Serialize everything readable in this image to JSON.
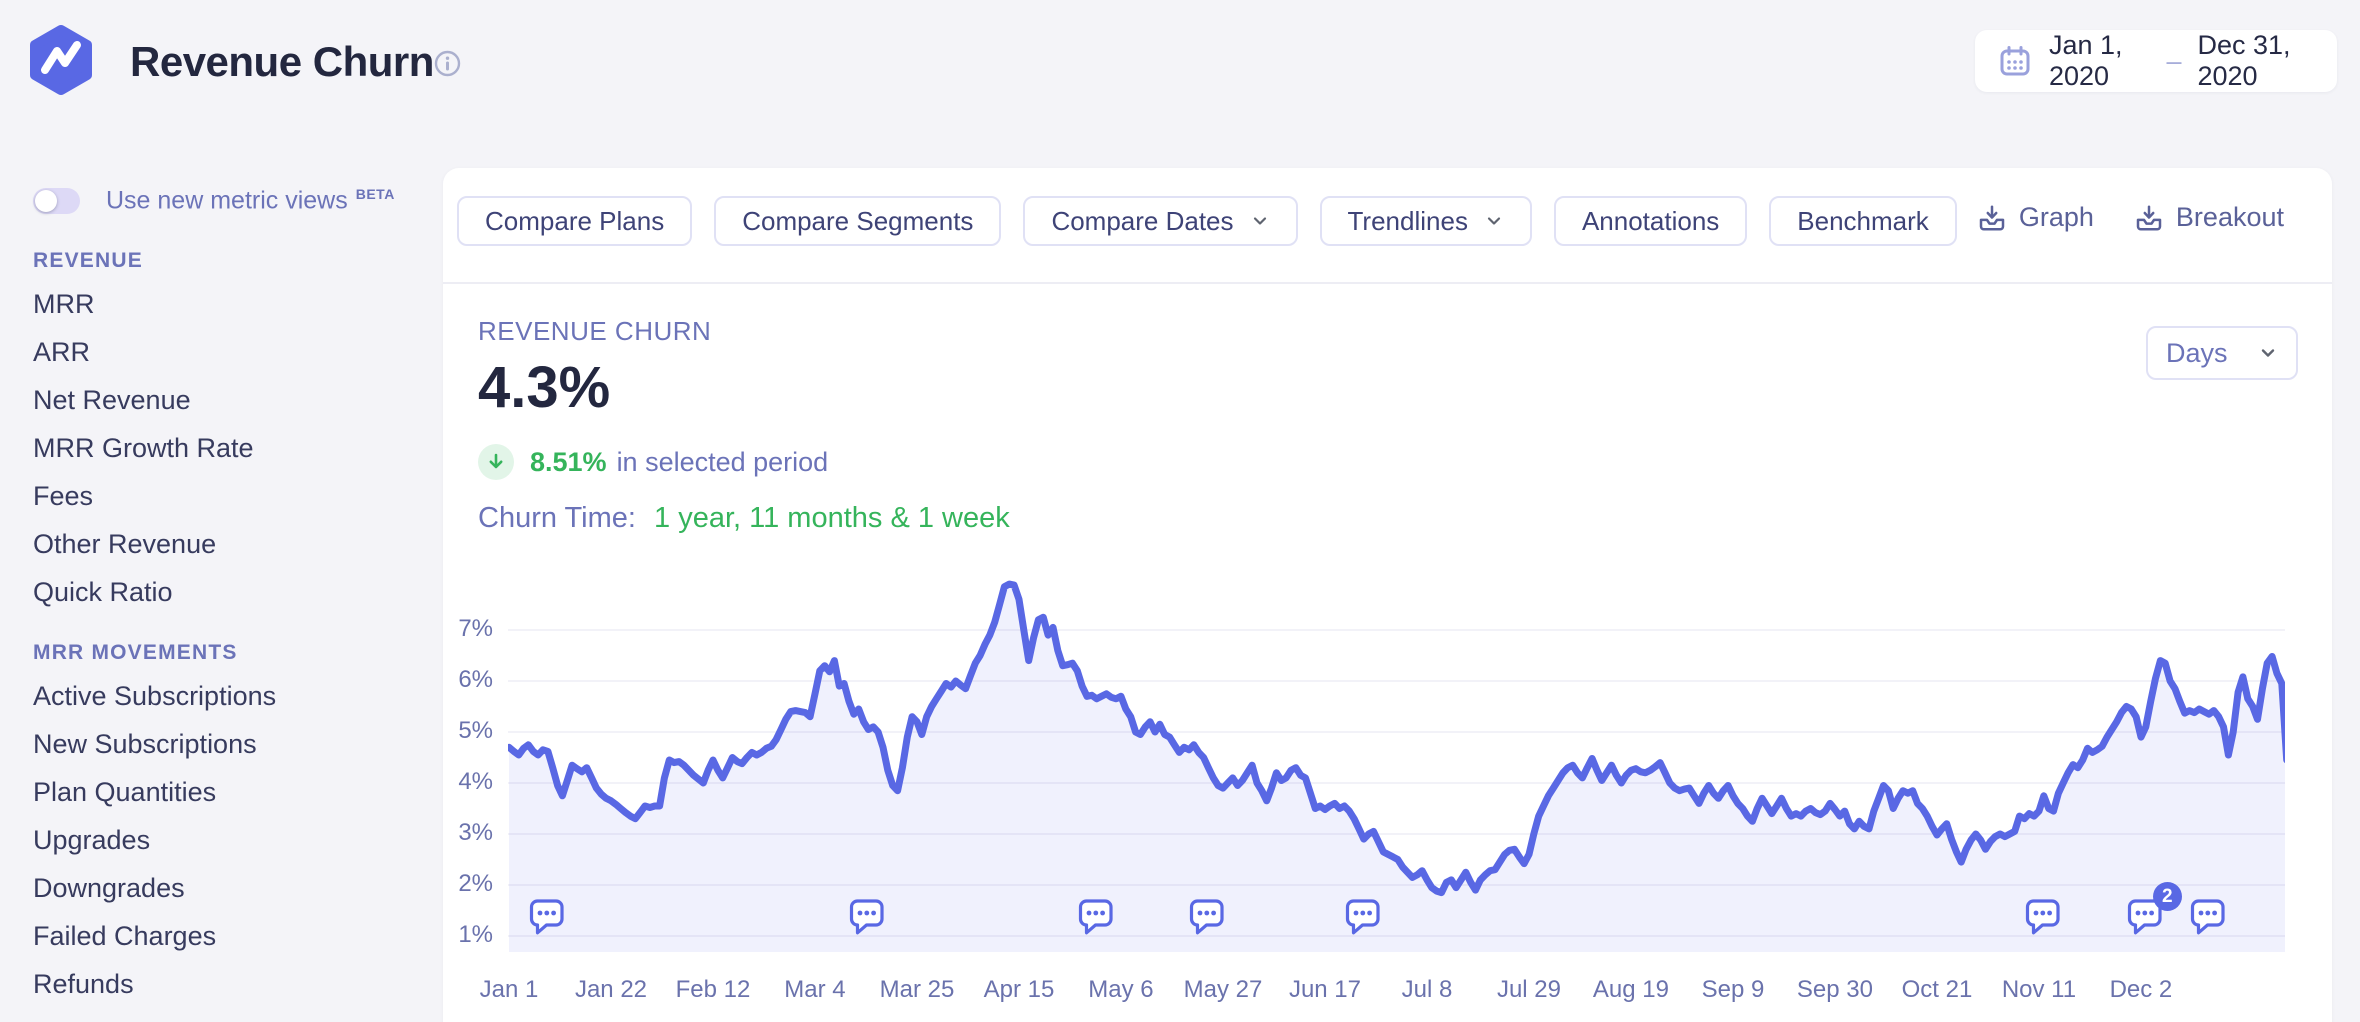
{
  "header": {
    "title": "Revenue Churn",
    "date_range": {
      "start": "Jan 1, 2020",
      "separator": "–",
      "end": "Dec 31, 2020"
    }
  },
  "sidebar": {
    "toggle": {
      "label": "Use new metric views",
      "badge": "BETA",
      "state": "off"
    },
    "sections": [
      {
        "title": "REVENUE",
        "items": [
          "MRR",
          "ARR",
          "Net Revenue",
          "MRR Growth Rate",
          "Fees",
          "Other Revenue",
          "Quick Ratio"
        ]
      },
      {
        "title": "MRR MOVEMENTS",
        "items": [
          "Active Subscriptions",
          "New Subscriptions",
          "Plan Quantities",
          "Upgrades",
          "Downgrades",
          "Failed Charges",
          "Refunds"
        ]
      }
    ]
  },
  "toolbar": {
    "buttons": [
      {
        "label": "Compare Plans",
        "chevron": false
      },
      {
        "label": "Compare Segments",
        "chevron": false
      },
      {
        "label": "Compare Dates",
        "chevron": true
      },
      {
        "label": "Trendlines",
        "chevron": true
      },
      {
        "label": "Annotations",
        "chevron": false
      },
      {
        "label": "Benchmark",
        "chevron": false
      }
    ],
    "export": [
      {
        "label": "Graph"
      },
      {
        "label": "Breakout"
      }
    ]
  },
  "metric": {
    "label": "REVENUE CHURN",
    "value": "4.3%",
    "change": {
      "value": "8.51%",
      "direction": "down",
      "suffix": "in selected period"
    },
    "churn_time_label": "Churn Time:",
    "churn_time_value": "1 year, 11 months & 1 week"
  },
  "interval_select": {
    "value": "Days"
  },
  "colors": {
    "accent_indigo": "#5968E4",
    "green": "#35B45B",
    "purple_text": "#6B73B8",
    "dark_text": "#23273F",
    "grid": "#EEEEF5",
    "area_fill": "rgba(89,104,228,0.09)"
  },
  "chart_data": {
    "type": "area",
    "title": "Revenue Churn over time",
    "unit": "%",
    "ylim": [
      1,
      7
    ],
    "grid": true,
    "legend": false,
    "y_ticks": [
      "1%",
      "2%",
      "3%",
      "4%",
      "5%",
      "6%",
      "7%"
    ],
    "x_ticks": [
      {
        "day": 0,
        "label": "Jan 1"
      },
      {
        "day": 21,
        "label": "Jan 22"
      },
      {
        "day": 42,
        "label": "Feb 12"
      },
      {
        "day": 63,
        "label": "Mar 4"
      },
      {
        "day": 84,
        "label": "Mar 25"
      },
      {
        "day": 105,
        "label": "Apr 15"
      },
      {
        "day": 126,
        "label": "May 6"
      },
      {
        "day": 147,
        "label": "May 27"
      },
      {
        "day": 168,
        "label": "Jun 17"
      },
      {
        "day": 189,
        "label": "Jul 8"
      },
      {
        "day": 210,
        "label": "Jul 29"
      },
      {
        "day": 231,
        "label": "Aug 19"
      },
      {
        "day": 252,
        "label": "Sep 9"
      },
      {
        "day": 273,
        "label": "Sep 30"
      },
      {
        "day": 294,
        "label": "Oct 21"
      },
      {
        "day": 315,
        "label": "Nov 11"
      },
      {
        "day": 336,
        "label": "Dec 2"
      }
    ],
    "annotations": [
      {
        "day": 8,
        "count": 1
      },
      {
        "day": 74,
        "count": 1
      },
      {
        "day": 121,
        "count": 1
      },
      {
        "day": 144,
        "count": 1
      },
      {
        "day": 176,
        "count": 1
      },
      {
        "day": 316,
        "count": 1
      },
      {
        "day": 337,
        "count": 2
      },
      {
        "day": 350,
        "count": 1
      }
    ],
    "points": [
      [
        0,
        4.7
      ],
      [
        1,
        4.62
      ],
      [
        2,
        4.55
      ],
      [
        3,
        4.68
      ],
      [
        4,
        4.75
      ],
      [
        5,
        4.62
      ],
      [
        6,
        4.55
      ],
      [
        7,
        4.65
      ],
      [
        8,
        4.62
      ],
      [
        9,
        4.3
      ],
      [
        10,
        3.95
      ],
      [
        11,
        3.75
      ],
      [
        12,
        4.05
      ],
      [
        13,
        4.35
      ],
      [
        14,
        4.28
      ],
      [
        15,
        4.22
      ],
      [
        16,
        4.3
      ],
      [
        17,
        4.1
      ],
      [
        18,
        3.9
      ],
      [
        19,
        3.78
      ],
      [
        20,
        3.7
      ],
      [
        21,
        3.65
      ],
      [
        22,
        3.58
      ],
      [
        23,
        3.5
      ],
      [
        24,
        3.42
      ],
      [
        25,
        3.35
      ],
      [
        26,
        3.3
      ],
      [
        27,
        3.42
      ],
      [
        28,
        3.55
      ],
      [
        29,
        3.52
      ],
      [
        30,
        3.55
      ],
      [
        31,
        3.55
      ],
      [
        32,
        4.1
      ],
      [
        33,
        4.45
      ],
      [
        34,
        4.4
      ],
      [
        35,
        4.42
      ],
      [
        36,
        4.35
      ],
      [
        38,
        4.15
      ],
      [
        40,
        4.0
      ],
      [
        41,
        4.25
      ],
      [
        42,
        4.45
      ],
      [
        43,
        4.25
      ],
      [
        44,
        4.1
      ],
      [
        45,
        4.3
      ],
      [
        46,
        4.5
      ],
      [
        47,
        4.42
      ],
      [
        48,
        4.38
      ],
      [
        49,
        4.5
      ],
      [
        50,
        4.6
      ],
      [
        51,
        4.55
      ],
      [
        52,
        4.6
      ],
      [
        53,
        4.68
      ],
      [
        54,
        4.72
      ],
      [
        55,
        4.85
      ],
      [
        56,
        5.05
      ],
      [
        57,
        5.25
      ],
      [
        58,
        5.4
      ],
      [
        59,
        5.42
      ],
      [
        60,
        5.4
      ],
      [
        61,
        5.38
      ],
      [
        62,
        5.3
      ],
      [
        63,
        5.75
      ],
      [
        64,
        6.2
      ],
      [
        65,
        6.3
      ],
      [
        66,
        6.18
      ],
      [
        67,
        6.4
      ],
      [
        68,
        5.9
      ],
      [
        69,
        5.95
      ],
      [
        70,
        5.6
      ],
      [
        71,
        5.35
      ],
      [
        72,
        5.45
      ],
      [
        73,
        5.2
      ],
      [
        74,
        5.05
      ],
      [
        75,
        5.1
      ],
      [
        76,
        5.0
      ],
      [
        77,
        4.7
      ],
      [
        78,
        4.25
      ],
      [
        79,
        3.95
      ],
      [
        80,
        3.85
      ],
      [
        81,
        4.3
      ],
      [
        82,
        4.9
      ],
      [
        83,
        5.3
      ],
      [
        84,
        5.2
      ],
      [
        85,
        4.95
      ],
      [
        86,
        5.3
      ],
      [
        87,
        5.5
      ],
      [
        88,
        5.65
      ],
      [
        89,
        5.8
      ],
      [
        90,
        5.95
      ],
      [
        91,
        5.88
      ],
      [
        92,
        6.0
      ],
      [
        93,
        5.92
      ],
      [
        94,
        5.85
      ],
      [
        95,
        6.1
      ],
      [
        96,
        6.35
      ],
      [
        97,
        6.5
      ],
      [
        98,
        6.72
      ],
      [
        99,
        6.9
      ],
      [
        100,
        7.15
      ],
      [
        101,
        7.5
      ],
      [
        102,
        7.85
      ],
      [
        103,
        7.9
      ],
      [
        104,
        7.88
      ],
      [
        105,
        7.6
      ],
      [
        106,
        7.0
      ],
      [
        107,
        6.4
      ],
      [
        108,
        6.85
      ],
      [
        109,
        7.2
      ],
      [
        110,
        7.25
      ],
      [
        111,
        6.9
      ],
      [
        112,
        7.05
      ],
      [
        113,
        6.6
      ],
      [
        114,
        6.3
      ],
      [
        115,
        6.32
      ],
      [
        116,
        6.35
      ],
      [
        117,
        6.2
      ],
      [
        118,
        5.9
      ],
      [
        119,
        5.7
      ],
      [
        120,
        5.72
      ],
      [
        121,
        5.65
      ],
      [
        122,
        5.7
      ],
      [
        123,
        5.75
      ],
      [
        124,
        5.68
      ],
      [
        125,
        5.65
      ],
      [
        126,
        5.7
      ],
      [
        127,
        5.45
      ],
      [
        128,
        5.3
      ],
      [
        129,
        5.0
      ],
      [
        130,
        4.95
      ],
      [
        131,
        5.1
      ],
      [
        132,
        5.2
      ],
      [
        133,
        5.0
      ],
      [
        134,
        5.15
      ],
      [
        135,
        4.95
      ],
      [
        136,
        4.9
      ],
      [
        137,
        4.75
      ],
      [
        138,
        4.6
      ],
      [
        139,
        4.7
      ],
      [
        140,
        4.65
      ],
      [
        141,
        4.75
      ],
      [
        142,
        4.6
      ],
      [
        143,
        4.5
      ],
      [
        144,
        4.3
      ],
      [
        145,
        4.1
      ],
      [
        146,
        3.95
      ],
      [
        147,
        3.9
      ],
      [
        148,
        4.0
      ],
      [
        149,
        4.1
      ],
      [
        150,
        3.95
      ],
      [
        151,
        4.05
      ],
      [
        152,
        4.2
      ],
      [
        153,
        4.35
      ],
      [
        154,
        4.0
      ],
      [
        155,
        3.85
      ],
      [
        156,
        3.65
      ],
      [
        157,
        3.9
      ],
      [
        158,
        4.2
      ],
      [
        159,
        4.05
      ],
      [
        160,
        4.1
      ],
      [
        161,
        4.25
      ],
      [
        162,
        4.3
      ],
      [
        163,
        4.15
      ],
      [
        164,
        4.1
      ],
      [
        165,
        3.8
      ],
      [
        166,
        3.5
      ],
      [
        167,
        3.55
      ],
      [
        168,
        3.48
      ],
      [
        169,
        3.55
      ],
      [
        170,
        3.6
      ],
      [
        171,
        3.5
      ],
      [
        172,
        3.55
      ],
      [
        173,
        3.45
      ],
      [
        174,
        3.3
      ],
      [
        175,
        3.1
      ],
      [
        176,
        2.9
      ],
      [
        177,
        3.0
      ],
      [
        178,
        3.05
      ],
      [
        179,
        2.85
      ],
      [
        180,
        2.65
      ],
      [
        181,
        2.6
      ],
      [
        182,
        2.55
      ],
      [
        183,
        2.5
      ],
      [
        184,
        2.35
      ],
      [
        185,
        2.25
      ],
      [
        186,
        2.15
      ],
      [
        187,
        2.2
      ],
      [
        188,
        2.28
      ],
      [
        189,
        2.1
      ],
      [
        190,
        1.95
      ],
      [
        191,
        1.88
      ],
      [
        192,
        1.85
      ],
      [
        193,
        2.05
      ],
      [
        194,
        2.1
      ],
      [
        195,
        1.95
      ],
      [
        196,
        2.1
      ],
      [
        197,
        2.25
      ],
      [
        198,
        2.05
      ],
      [
        199,
        1.9
      ],
      [
        200,
        2.1
      ],
      [
        201,
        2.2
      ],
      [
        202,
        2.28
      ],
      [
        203,
        2.3
      ],
      [
        204,
        2.45
      ],
      [
        205,
        2.6
      ],
      [
        206,
        2.68
      ],
      [
        207,
        2.7
      ],
      [
        208,
        2.55
      ],
      [
        209,
        2.42
      ],
      [
        210,
        2.6
      ],
      [
        211,
        3.0
      ],
      [
        212,
        3.35
      ],
      [
        213,
        3.55
      ],
      [
        214,
        3.75
      ],
      [
        215,
        3.9
      ],
      [
        216,
        4.05
      ],
      [
        217,
        4.2
      ],
      [
        218,
        4.3
      ],
      [
        219,
        4.35
      ],
      [
        220,
        4.2
      ],
      [
        221,
        4.1
      ],
      [
        222,
        4.3
      ],
      [
        223,
        4.48
      ],
      [
        224,
        4.25
      ],
      [
        225,
        4.05
      ],
      [
        226,
        4.2
      ],
      [
        227,
        4.35
      ],
      [
        228,
        4.15
      ],
      [
        229,
        4.0
      ],
      [
        230,
        4.15
      ],
      [
        231,
        4.25
      ],
      [
        232,
        4.28
      ],
      [
        233,
        4.22
      ],
      [
        234,
        4.2
      ],
      [
        235,
        4.25
      ],
      [
        236,
        4.32
      ],
      [
        237,
        4.4
      ],
      [
        238,
        4.2
      ],
      [
        239,
        4.0
      ],
      [
        240,
        3.9
      ],
      [
        241,
        3.85
      ],
      [
        242,
        3.88
      ],
      [
        243,
        3.9
      ],
      [
        244,
        3.75
      ],
      [
        245,
        3.6
      ],
      [
        246,
        3.8
      ],
      [
        247,
        3.95
      ],
      [
        248,
        3.8
      ],
      [
        249,
        3.7
      ],
      [
        250,
        3.85
      ],
      [
        251,
        3.95
      ],
      [
        252,
        3.75
      ],
      [
        253,
        3.6
      ],
      [
        254,
        3.5
      ],
      [
        255,
        3.35
      ],
      [
        256,
        3.25
      ],
      [
        257,
        3.5
      ],
      [
        258,
        3.7
      ],
      [
        259,
        3.55
      ],
      [
        260,
        3.4
      ],
      [
        261,
        3.55
      ],
      [
        262,
        3.7
      ],
      [
        263,
        3.5
      ],
      [
        264,
        3.35
      ],
      [
        265,
        3.4
      ],
      [
        266,
        3.35
      ],
      [
        267,
        3.45
      ],
      [
        268,
        3.5
      ],
      [
        269,
        3.42
      ],
      [
        270,
        3.38
      ],
      [
        271,
        3.45
      ],
      [
        272,
        3.6
      ],
      [
        273,
        3.48
      ],
      [
        274,
        3.35
      ],
      [
        275,
        3.45
      ],
      [
        276,
        3.2
      ],
      [
        277,
        3.1
      ],
      [
        278,
        3.25
      ],
      [
        279,
        3.15
      ],
      [
        280,
        3.1
      ],
      [
        281,
        3.45
      ],
      [
        282,
        3.7
      ],
      [
        283,
        3.95
      ],
      [
        284,
        3.85
      ],
      [
        285,
        3.5
      ],
      [
        286,
        3.7
      ],
      [
        287,
        3.85
      ],
      [
        288,
        3.8
      ],
      [
        289,
        3.85
      ],
      [
        290,
        3.6
      ],
      [
        291,
        3.5
      ],
      [
        292,
        3.35
      ],
      [
        293,
        3.15
      ],
      [
        294,
        2.98
      ],
      [
        295,
        3.1
      ],
      [
        296,
        3.2
      ],
      [
        297,
        2.9
      ],
      [
        298,
        2.65
      ],
      [
        299,
        2.45
      ],
      [
        300,
        2.7
      ],
      [
        301,
        2.88
      ],
      [
        302,
        3.0
      ],
      [
        303,
        2.88
      ],
      [
        304,
        2.7
      ],
      [
        305,
        2.85
      ],
      [
        306,
        2.95
      ],
      [
        307,
        3.0
      ],
      [
        308,
        2.95
      ],
      [
        309,
        3.0
      ],
      [
        310,
        3.05
      ],
      [
        311,
        3.35
      ],
      [
        312,
        3.3
      ],
      [
        313,
        3.4
      ],
      [
        314,
        3.35
      ],
      [
        315,
        3.45
      ],
      [
        316,
        3.75
      ],
      [
        317,
        3.5
      ],
      [
        318,
        3.45
      ],
      [
        319,
        3.8
      ],
      [
        320,
        4.0
      ],
      [
        321,
        4.2
      ],
      [
        322,
        4.36
      ],
      [
        323,
        4.3
      ],
      [
        324,
        4.45
      ],
      [
        325,
        4.68
      ],
      [
        326,
        4.6
      ],
      [
        327,
        4.65
      ],
      [
        328,
        4.72
      ],
      [
        329,
        4.9
      ],
      [
        330,
        5.05
      ],
      [
        331,
        5.2
      ],
      [
        332,
        5.38
      ],
      [
        333,
        5.5
      ],
      [
        334,
        5.45
      ],
      [
        335,
        5.3
      ],
      [
        336,
        4.9
      ],
      [
        337,
        5.1
      ],
      [
        338,
        5.6
      ],
      [
        339,
        6.05
      ],
      [
        340,
        6.4
      ],
      [
        341,
        6.35
      ],
      [
        342,
        6.0
      ],
      [
        343,
        5.85
      ],
      [
        344,
        5.6
      ],
      [
        345,
        5.37
      ],
      [
        346,
        5.42
      ],
      [
        347,
        5.38
      ],
      [
        348,
        5.45
      ],
      [
        349,
        5.4
      ],
      [
        350,
        5.35
      ],
      [
        351,
        5.42
      ],
      [
        352,
        5.3
      ],
      [
        353,
        5.1
      ],
      [
        354,
        4.55
      ],
      [
        355,
        5.0
      ],
      [
        356,
        5.78
      ],
      [
        357,
        6.08
      ],
      [
        358,
        5.65
      ],
      [
        359,
        5.5
      ],
      [
        360,
        5.25
      ],
      [
        361,
        5.85
      ],
      [
        362,
        6.35
      ],
      [
        363,
        6.48
      ],
      [
        364,
        6.15
      ],
      [
        365,
        5.95
      ],
      [
        366,
        4.45
      ]
    ],
    "points_note": "values are % revenue churn per day; last segment drops sharply Dec 29-31 to ~4.45%",
    "line_color": "#5968E4",
    "fill_color": "rgba(89,104,228,0.09)"
  }
}
